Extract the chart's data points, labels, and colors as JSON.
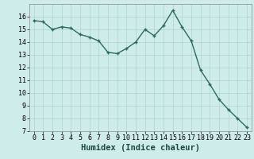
{
  "x": [
    0,
    1,
    2,
    3,
    4,
    5,
    6,
    7,
    8,
    9,
    10,
    11,
    12,
    13,
    14,
    15,
    16,
    17,
    18,
    19,
    20,
    21,
    22,
    23
  ],
  "y": [
    15.7,
    15.6,
    15.0,
    15.2,
    15.1,
    14.6,
    14.4,
    14.1,
    13.2,
    13.1,
    13.5,
    14.0,
    15.0,
    14.5,
    15.3,
    16.5,
    15.2,
    14.1,
    11.8,
    10.7,
    9.5,
    8.7,
    8.0,
    7.3
  ],
  "line_color": "#2e6b5e",
  "marker": "+",
  "marker_size": 3,
  "marker_lw": 1.0,
  "line_width": 1.0,
  "bg_color": "#ceecea",
  "grid_color": "#b0d4d0",
  "xlabel": "Humidex (Indice chaleur)",
  "xlabel_fontsize": 7.5,
  "tick_fontsize": 6.0,
  "ylim": [
    7,
    17
  ],
  "xlim": [
    -0.5,
    23.5
  ],
  "yticks": [
    7,
    8,
    9,
    10,
    11,
    12,
    13,
    14,
    15,
    16
  ],
  "xticks": [
    0,
    1,
    2,
    3,
    4,
    5,
    6,
    7,
    8,
    9,
    10,
    11,
    12,
    13,
    14,
    15,
    16,
    17,
    18,
    19,
    20,
    21,
    22,
    23
  ]
}
